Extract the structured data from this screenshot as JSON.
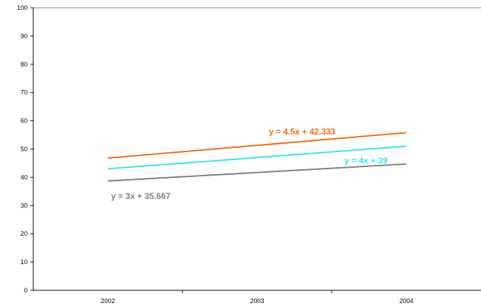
{
  "chart_data": {
    "type": "line",
    "categories": [
      "2002",
      "2003",
      "2004"
    ],
    "x": [
      1,
      2,
      3
    ],
    "ylim": [
      0,
      100
    ],
    "yticks": [
      0,
      10,
      20,
      30,
      40,
      50,
      60,
      70,
      80,
      90,
      100
    ],
    "grid": false,
    "legend": "none",
    "title": "",
    "xlabel": "",
    "ylabel": "",
    "series": [
      {
        "values": [
          46.8,
          51.3,
          55.8
        ],
        "color": "#F26B10",
        "equation": "y = 4.5x + 42.333"
      },
      {
        "values": [
          43,
          47,
          51
        ],
        "color": "#33E5F2",
        "equation": "y = 4x + 39"
      },
      {
        "values": [
          38.7,
          41.7,
          44.7
        ],
        "color": "#7F7F7F",
        "equation": "y = 3x + 35.667"
      }
    ]
  }
}
